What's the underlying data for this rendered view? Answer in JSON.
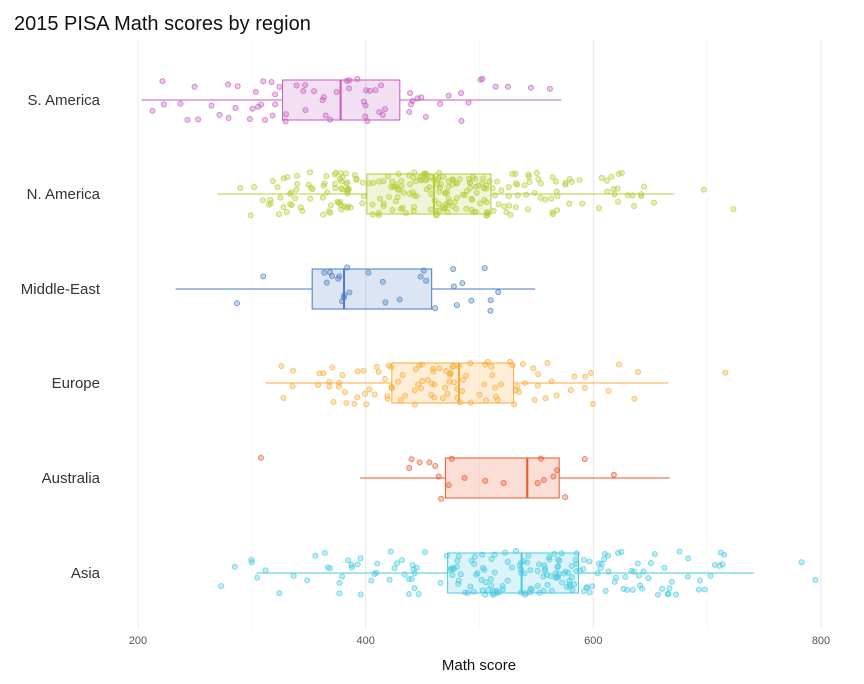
{
  "chart_data": {
    "type": "boxplot",
    "title": "2015 PISA Math scores by region",
    "xlabel": "Math score",
    "ylabel": "",
    "xlim": [
      170,
      805
    ],
    "xticks": [
      200,
      400,
      600,
      800
    ],
    "grid": true,
    "legend": "none",
    "series": [
      {
        "name": "Asia",
        "color": "#48c9e0",
        "min": 304,
        "q1": 472,
        "median": 537,
        "q3": 587,
        "max": 741,
        "outliers": [
          273,
          285,
          300,
          783,
          795
        ],
        "range": [
          295,
          740
        ],
        "n": 200,
        "seed": 11
      },
      {
        "name": "Australia",
        "color": "#e8572a",
        "min": 395,
        "q1": 470,
        "median": 542,
        "q3": 570,
        "max": 667,
        "outliers": [
          308
        ],
        "range": [
          395,
          667
        ],
        "n": 20,
        "seed": 23
      },
      {
        "name": "Europe",
        "color": "#f9ab37",
        "min": 312,
        "q1": 423,
        "median": 482,
        "q3": 530,
        "max": 666,
        "outliers": [
          716
        ],
        "range": [
          305,
          666
        ],
        "n": 110,
        "seed": 37
      },
      {
        "name": "Middle-East",
        "color": "#4a7cc4",
        "min": 233,
        "q1": 353,
        "median": 381,
        "q3": 458,
        "max": 549,
        "outliers": [],
        "range": [
          233,
          549
        ],
        "n": 30,
        "seed": 41
      },
      {
        "name": "N. America",
        "color": "#b4cc36",
        "min": 270,
        "q1": 401,
        "median": 460,
        "q3": 510,
        "max": 671,
        "outliers": [
          697,
          723
        ],
        "range": [
          270,
          671
        ],
        "n": 260,
        "seed": 53
      },
      {
        "name": "S. America",
        "color": "#c35dbd",
        "min": 203,
        "q1": 327,
        "median": 378,
        "q3": 430,
        "max": 572,
        "outliers": [],
        "range": [
          203,
          572
        ],
        "n": 70,
        "seed": 67
      }
    ]
  }
}
